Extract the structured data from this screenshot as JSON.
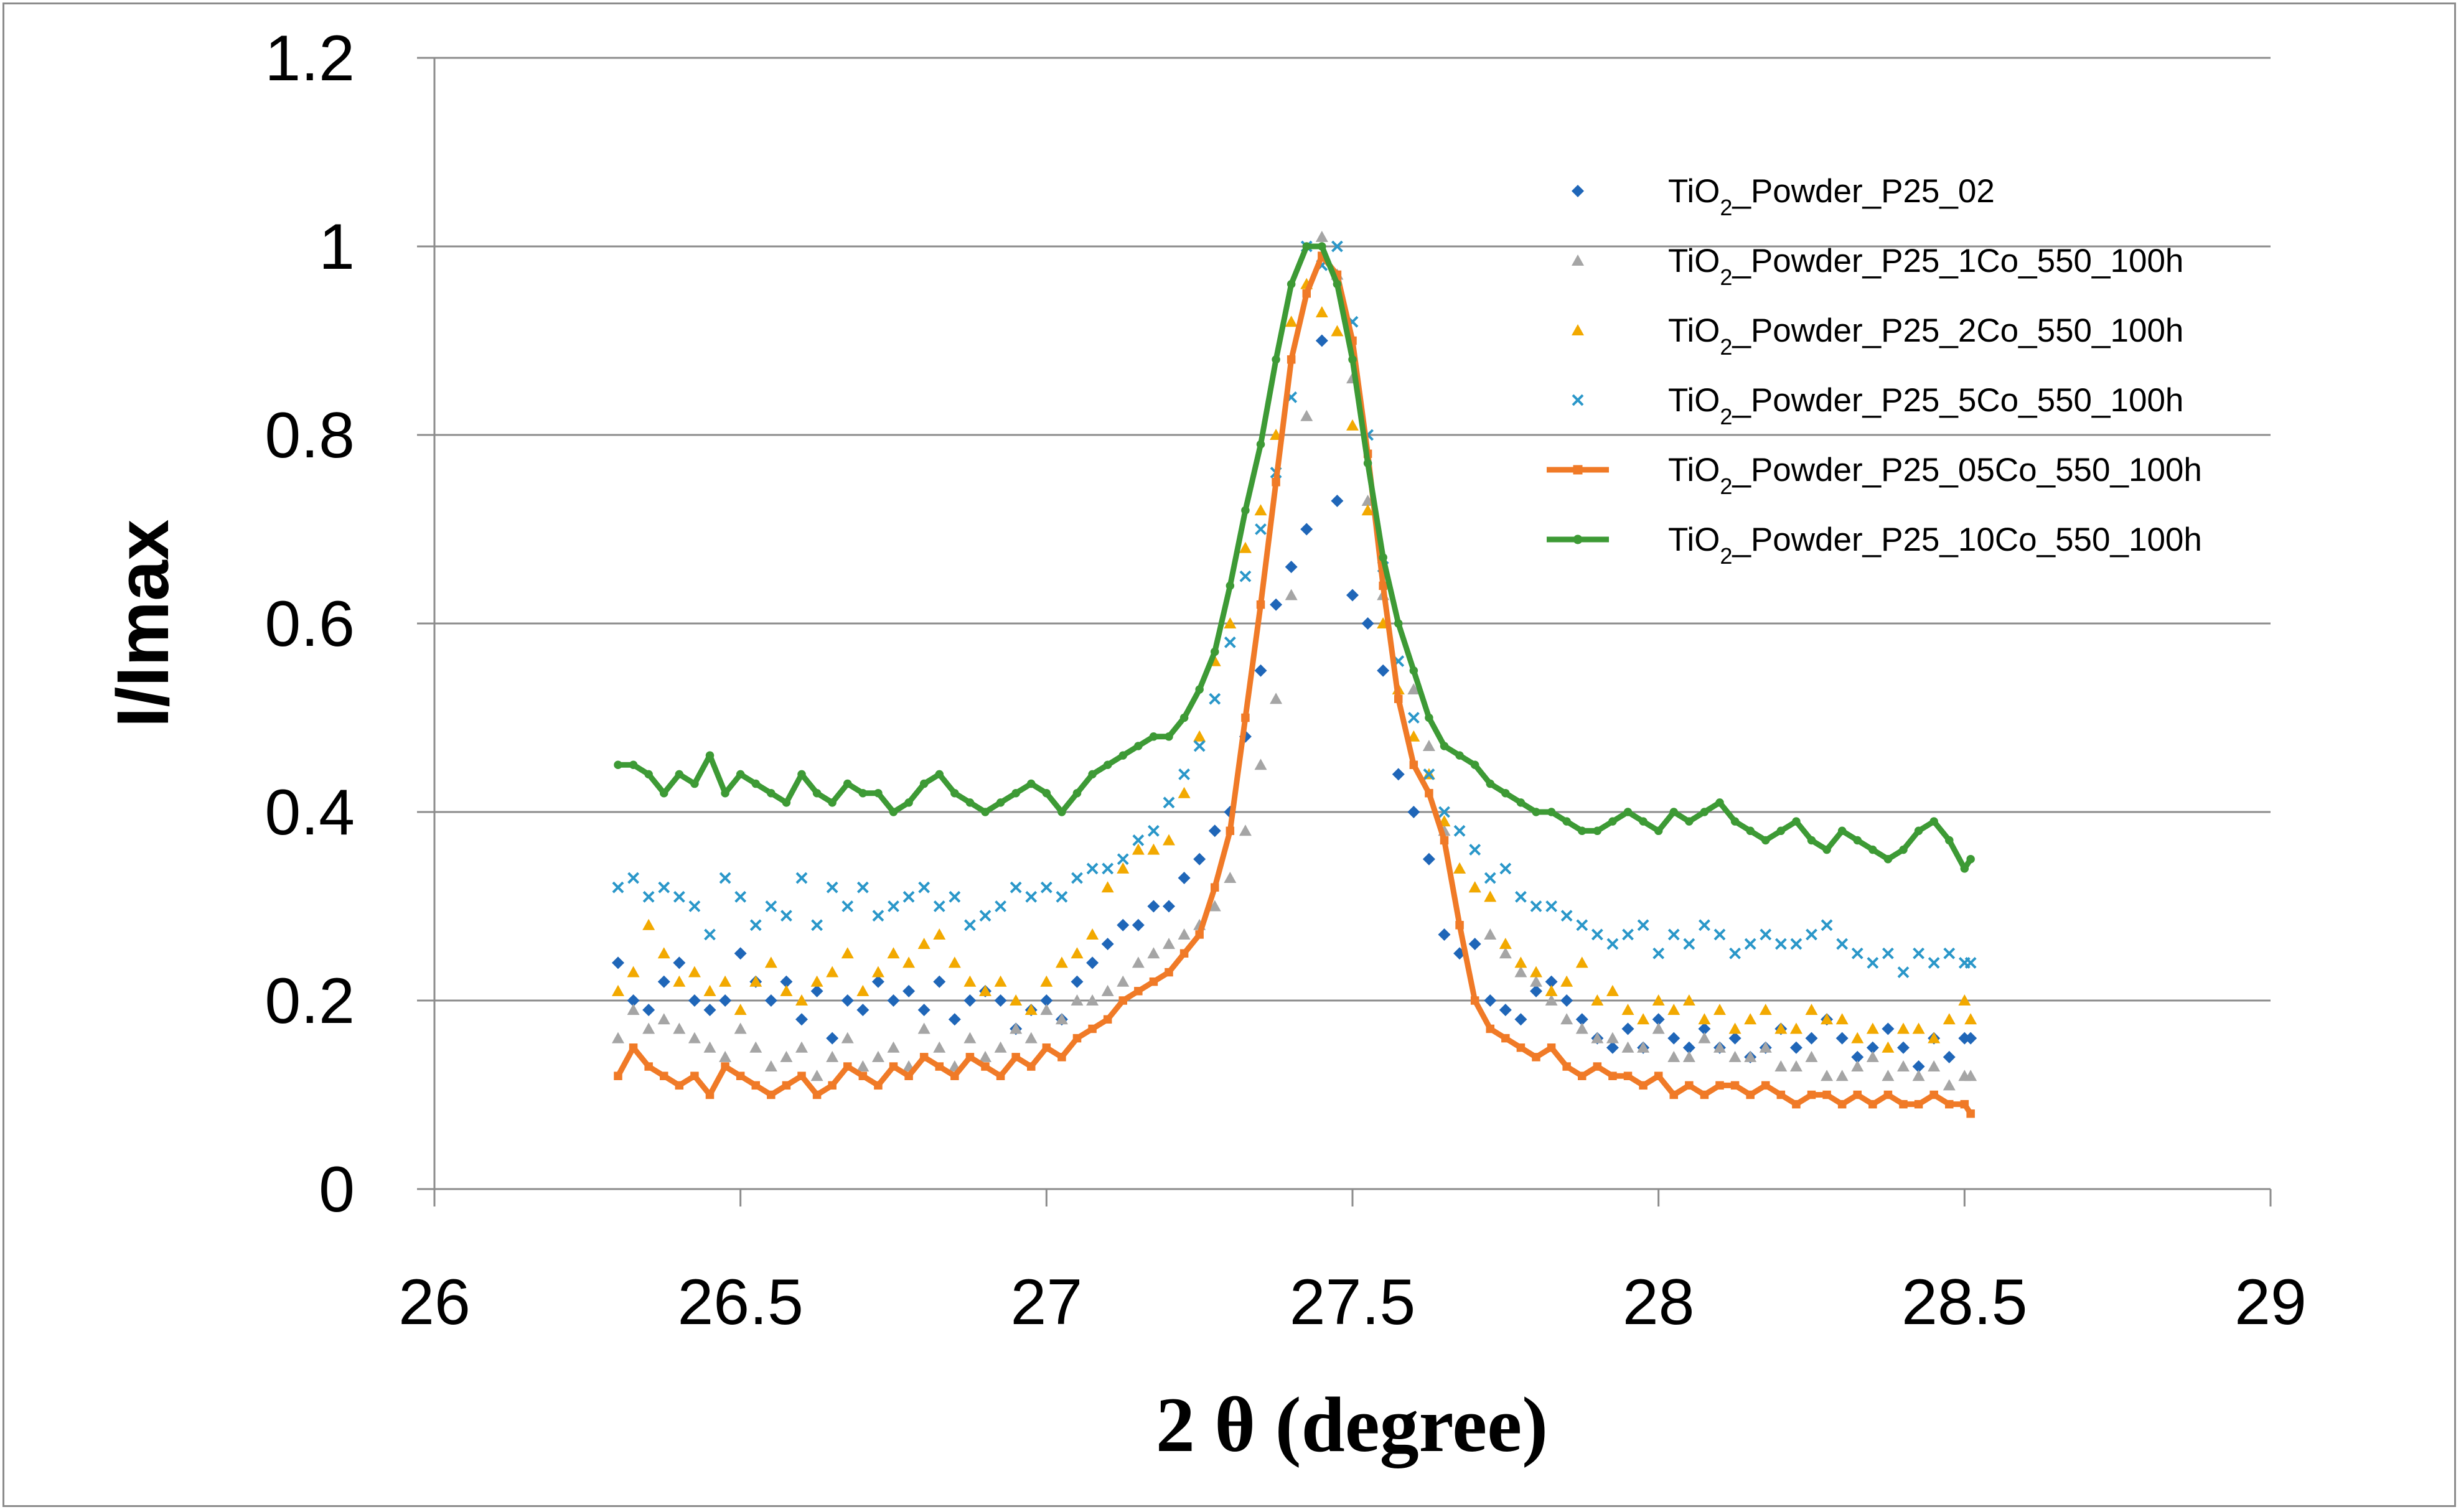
{
  "chart_data": {
    "type": "scatter",
    "title": "",
    "xlabel": "2 θ (degree)",
    "ylabel": "I/Imax",
    "xlim": [
      26,
      29
    ],
    "ylim": [
      0,
      1.2
    ],
    "x_ticks": [
      "26",
      "26.5",
      "27",
      "27.5",
      "28",
      "28.5",
      "29"
    ],
    "y_ticks": [
      "0",
      "0.2",
      "0.4",
      "0.6",
      "0.8",
      "1",
      "1.2"
    ],
    "grid": "horizontal",
    "legend_position": "top-right",
    "x": [
      26.3,
      26.325,
      26.35,
      26.375,
      26.4,
      26.425,
      26.45,
      26.475,
      26.5,
      26.525,
      26.55,
      26.575,
      26.6,
      26.625,
      26.65,
      26.675,
      26.7,
      26.725,
      26.75,
      26.775,
      26.8,
      26.825,
      26.85,
      26.875,
      26.9,
      26.925,
      26.95,
      26.975,
      27,
      27.025,
      27.05,
      27.075,
      27.1,
      27.125,
      27.15,
      27.175,
      27.2,
      27.225,
      27.25,
      27.275,
      27.3,
      27.325,
      27.35,
      27.375,
      27.4,
      27.425,
      27.45,
      27.475,
      27.5,
      27.525,
      27.55,
      27.575,
      27.6,
      27.625,
      27.65,
      27.675,
      27.7,
      27.725,
      27.75,
      27.775,
      27.8,
      27.825,
      27.85,
      27.875,
      27.9,
      27.925,
      27.95,
      27.975,
      28,
      28.025,
      28.05,
      28.075,
      28.1,
      28.125,
      28.15,
      28.175,
      28.2,
      28.225,
      28.25,
      28.275,
      28.3,
      28.325,
      28.35,
      28.375,
      28.4,
      28.425,
      28.45,
      28.475,
      28.5,
      28.51
    ],
    "series": [
      {
        "name_prefix": "TiO",
        "name_sub": "2",
        "name_suffix": "_Powder_P25_02",
        "style": "markers",
        "marker": "diamond",
        "color": "#1f66b8",
        "values": [
          0.24,
          0.2,
          0.19,
          0.22,
          0.24,
          0.2,
          0.19,
          0.2,
          0.25,
          0.22,
          0.2,
          0.22,
          0.18,
          0.21,
          0.16,
          0.2,
          0.19,
          0.22,
          0.2,
          0.21,
          0.19,
          0.22,
          0.18,
          0.2,
          0.21,
          0.2,
          0.17,
          0.19,
          0.2,
          0.18,
          0.22,
          0.24,
          0.26,
          0.28,
          0.28,
          0.3,
          0.3,
          0.33,
          0.35,
          0.38,
          0.4,
          0.48,
          0.55,
          0.62,
          0.66,
          0.7,
          0.9,
          0.73,
          0.63,
          0.6,
          0.55,
          0.44,
          0.4,
          0.35,
          0.27,
          0.25,
          0.26,
          0.2,
          0.19,
          0.18,
          0.21,
          0.22,
          0.2,
          0.18,
          0.16,
          0.15,
          0.17,
          0.15,
          0.18,
          0.16,
          0.15,
          0.17,
          0.15,
          0.16,
          0.14,
          0.15,
          0.17,
          0.15,
          0.16,
          0.18,
          0.16,
          0.14,
          0.15,
          0.17,
          0.15,
          0.13,
          0.16,
          0.14,
          0.16,
          0.16
        ]
      },
      {
        "name_prefix": "TiO",
        "name_sub": "2",
        "name_suffix": "_Powder_P25_1Co_550_100h",
        "style": "markers",
        "marker": "triangle",
        "color": "#a5a5a5",
        "values": [
          0.16,
          0.19,
          0.17,
          0.18,
          0.17,
          0.16,
          0.15,
          0.14,
          0.17,
          0.15,
          0.13,
          0.14,
          0.15,
          0.12,
          0.14,
          0.16,
          0.13,
          0.14,
          0.15,
          0.13,
          0.17,
          0.15,
          0.13,
          0.16,
          0.14,
          0.15,
          0.17,
          0.16,
          0.19,
          0.18,
          0.2,
          0.2,
          0.21,
          0.22,
          0.24,
          0.25,
          0.26,
          0.27,
          0.28,
          0.3,
          0.33,
          0.38,
          0.45,
          0.52,
          0.63,
          0.82,
          1.01,
          0.97,
          0.86,
          0.73,
          0.63,
          0.53,
          0.53,
          0.47,
          0.38,
          0.34,
          0.32,
          0.27,
          0.25,
          0.23,
          0.22,
          0.2,
          0.18,
          0.17,
          0.16,
          0.16,
          0.15,
          0.15,
          0.17,
          0.14,
          0.14,
          0.16,
          0.15,
          0.14,
          0.14,
          0.15,
          0.13,
          0.13,
          0.14,
          0.12,
          0.12,
          0.13,
          0.14,
          0.12,
          0.13,
          0.12,
          0.13,
          0.11,
          0.12,
          0.12
        ]
      },
      {
        "name_prefix": "TiO",
        "name_sub": "2",
        "name_suffix": "_Powder_P25_2Co_550_100h",
        "style": "markers",
        "marker": "triangle",
        "color": "#f2a900",
        "values": [
          0.21,
          0.23,
          0.28,
          0.25,
          0.22,
          0.23,
          0.21,
          0.22,
          0.19,
          0.22,
          0.24,
          0.21,
          0.2,
          0.22,
          0.23,
          0.25,
          0.21,
          0.23,
          0.25,
          0.24,
          0.26,
          0.27,
          0.24,
          0.22,
          0.21,
          0.22,
          0.2,
          0.19,
          0.22,
          0.24,
          0.25,
          0.27,
          0.32,
          0.34,
          0.36,
          0.36,
          0.37,
          0.42,
          0.48,
          0.56,
          0.6,
          0.68,
          0.72,
          0.8,
          0.92,
          0.96,
          0.93,
          0.91,
          0.81,
          0.72,
          0.6,
          0.53,
          0.48,
          0.44,
          0.39,
          0.34,
          0.32,
          0.31,
          0.26,
          0.24,
          0.23,
          0.21,
          0.22,
          0.24,
          0.2,
          0.21,
          0.19,
          0.18,
          0.2,
          0.19,
          0.2,
          0.18,
          0.19,
          0.17,
          0.18,
          0.19,
          0.17,
          0.17,
          0.19,
          0.18,
          0.18,
          0.16,
          0.17,
          0.15,
          0.17,
          0.17,
          0.16,
          0.18,
          0.2,
          0.18
        ]
      },
      {
        "name_prefix": "TiO",
        "name_sub": "2",
        "name_suffix": "_Powder_P25_5Co_550_100h",
        "style": "markers",
        "marker": "x",
        "color": "#2a97c9",
        "values": [
          0.32,
          0.33,
          0.31,
          0.32,
          0.31,
          0.3,
          0.27,
          0.33,
          0.31,
          0.28,
          0.3,
          0.29,
          0.33,
          0.28,
          0.32,
          0.3,
          0.32,
          0.29,
          0.3,
          0.31,
          0.32,
          0.3,
          0.31,
          0.28,
          0.29,
          0.3,
          0.32,
          0.31,
          0.32,
          0.31,
          0.33,
          0.34,
          0.34,
          0.35,
          0.37,
          0.38,
          0.41,
          0.44,
          0.47,
          0.52,
          0.58,
          0.65,
          0.7,
          0.76,
          0.84,
          1.0,
          0.98,
          1.0,
          0.92,
          0.8,
          0.66,
          0.56,
          0.5,
          0.44,
          0.4,
          0.38,
          0.36,
          0.33,
          0.34,
          0.31,
          0.3,
          0.3,
          0.29,
          0.28,
          0.27,
          0.26,
          0.27,
          0.28,
          0.25,
          0.27,
          0.26,
          0.28,
          0.27,
          0.25,
          0.26,
          0.27,
          0.26,
          0.26,
          0.27,
          0.28,
          0.26,
          0.25,
          0.24,
          0.25,
          0.23,
          0.25,
          0.24,
          0.25,
          0.24,
          0.24
        ]
      },
      {
        "name_prefix": "TiO",
        "name_sub": "2",
        "name_suffix": "_Powder_P25_05Co_550_100h",
        "style": "line",
        "marker": "square",
        "color": "#f07a27",
        "values": [
          0.12,
          0.15,
          0.13,
          0.12,
          0.11,
          0.12,
          0.1,
          0.13,
          0.12,
          0.11,
          0.1,
          0.11,
          0.12,
          0.1,
          0.11,
          0.13,
          0.12,
          0.11,
          0.13,
          0.12,
          0.14,
          0.13,
          0.12,
          0.14,
          0.13,
          0.12,
          0.14,
          0.13,
          0.15,
          0.14,
          0.16,
          0.17,
          0.18,
          0.2,
          0.21,
          0.22,
          0.23,
          0.25,
          0.27,
          0.32,
          0.38,
          0.5,
          0.62,
          0.75,
          0.88,
          0.95,
          0.99,
          0.97,
          0.9,
          0.78,
          0.64,
          0.52,
          0.45,
          0.42,
          0.37,
          0.28,
          0.2,
          0.17,
          0.16,
          0.15,
          0.14,
          0.15,
          0.13,
          0.12,
          0.13,
          0.12,
          0.12,
          0.11,
          0.12,
          0.1,
          0.11,
          0.1,
          0.11,
          0.11,
          0.1,
          0.11,
          0.1,
          0.09,
          0.1,
          0.1,
          0.09,
          0.1,
          0.09,
          0.1,
          0.09,
          0.09,
          0.1,
          0.09,
          0.09,
          0.08
        ]
      },
      {
        "name_prefix": "TiO",
        "name_sub": "2",
        "name_suffix": "_Powder_P25_10Co_550_100h",
        "style": "line",
        "marker": "circle",
        "color": "#3d9a35",
        "values": [
          0.45,
          0.45,
          0.44,
          0.42,
          0.44,
          0.43,
          0.46,
          0.42,
          0.44,
          0.43,
          0.42,
          0.41,
          0.44,
          0.42,
          0.41,
          0.43,
          0.42,
          0.42,
          0.4,
          0.41,
          0.43,
          0.44,
          0.42,
          0.41,
          0.4,
          0.41,
          0.42,
          0.43,
          0.42,
          0.4,
          0.42,
          0.44,
          0.45,
          0.46,
          0.47,
          0.48,
          0.48,
          0.5,
          0.53,
          0.57,
          0.64,
          0.72,
          0.79,
          0.88,
          0.96,
          1.0,
          1.0,
          0.96,
          0.88,
          0.77,
          0.67,
          0.6,
          0.55,
          0.5,
          0.47,
          0.46,
          0.45,
          0.43,
          0.42,
          0.41,
          0.4,
          0.4,
          0.39,
          0.38,
          0.38,
          0.39,
          0.4,
          0.39,
          0.38,
          0.4,
          0.39,
          0.4,
          0.41,
          0.39,
          0.38,
          0.37,
          0.38,
          0.39,
          0.37,
          0.36,
          0.38,
          0.37,
          0.36,
          0.35,
          0.36,
          0.38,
          0.39,
          0.37,
          0.34,
          0.35
        ]
      }
    ]
  }
}
